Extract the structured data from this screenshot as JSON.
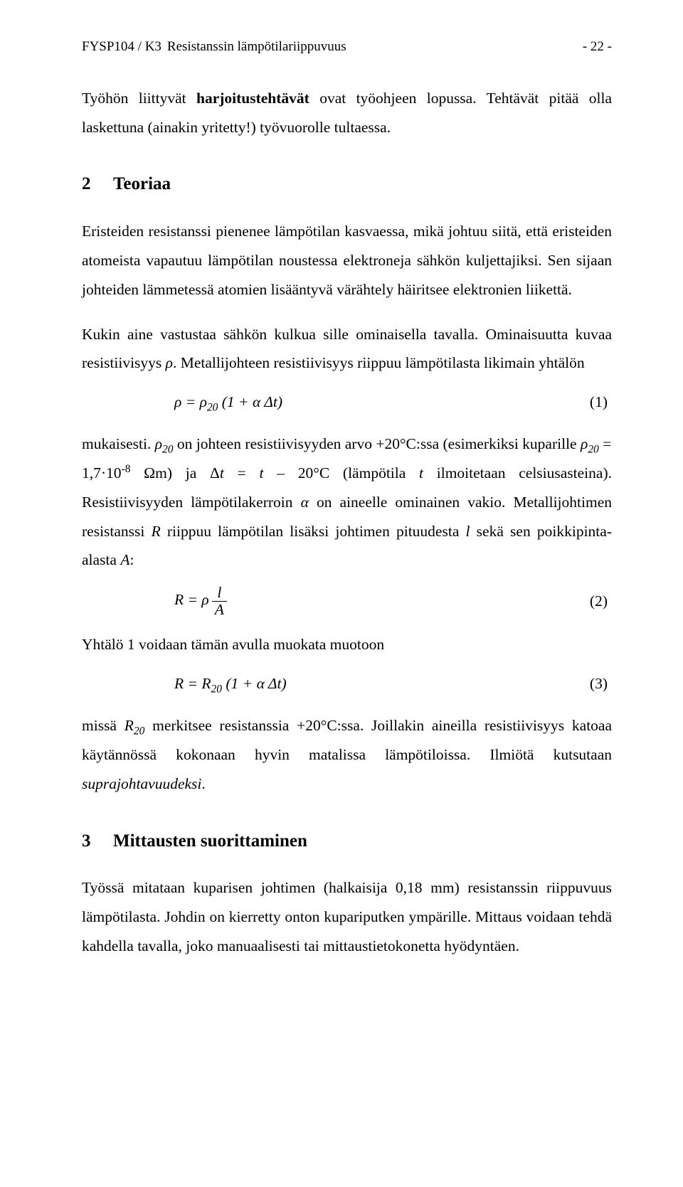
{
  "header": {
    "course": "FYSP104 / K3",
    "title": "Resistanssin lämpötilariippuvuus",
    "page": "- 22 -"
  },
  "intro": {
    "p1_a": "Työhön liittyvät ",
    "p1_b_bold": "harjoitustehtävät",
    "p1_c": " ovat työohjeen lopussa. Tehtävät pitää olla laskettuna (ainakin yritetty!) työvuorolle tultaessa."
  },
  "section2": {
    "num": "2",
    "title": "Teoriaa",
    "p1": "Eristeiden resistanssi pienenee lämpötilan kasvaessa, mikä johtuu siitä, että eristeiden atomeista vapautuu lämpötilan noustessa elektroneja sähkön kuljettajiksi. Sen sijaan johteiden lämmetessä atomien lisääntyvä värähtely häiritsee elektronien liikettä.",
    "p2_a": "Kukin aine vastustaa sähkön kulkua sille ominaisella tavalla. Ominaisuutta kuvaa resistiivisyys ",
    "p2_rho": "ρ",
    "p2_b": ". Metallijohteen resistiivisyys riippuu lämpötilasta likimain yhtälön",
    "eq1": "ρ = ρ₂₀ (1 + α Δt)",
    "eq1_num": "(1)",
    "p3_a": "mukaisesti. ",
    "p3_rho20": "ρ₂₀",
    "p3_b": " on johteen resistiivisyyden arvo +20°C:ssa (esimerkiksi kuparille ",
    "p3_rho20b": "ρ₂₀",
    "p3_c": " = 1,7·10",
    "p3_exp": "-8",
    "p3_d": " Ωm) ja Δ",
    "p3_e_it": "t",
    "p3_f": " = ",
    "p3_g_it": "t",
    "p3_h": " – 20°C (lämpötila ",
    "p3_i_it": "t",
    "p3_j": " ilmoitetaan celsiusasteina). Resistiivisyyden lämpötilakerroin ",
    "p3_alpha": "α",
    "p3_k": " on aineelle ominainen vakio. Metallijohtimen resistanssi ",
    "p3_R": "R",
    "p3_l": " riippuu lämpötilan lisäksi johtimen pituudesta ",
    "p3_litalic": "l",
    "p3_m": " sekä sen poikkipinta-alasta ",
    "p3_A": "A",
    "p3_n": ":",
    "eq2_lhs": "R = ρ",
    "eq2_top": "l",
    "eq2_bot": "A",
    "eq2_num": "(2)",
    "p4": "Yhtälö 1 voidaan tämän avulla muokata muotoon",
    "eq3": "R = R₂₀ (1 + α Δt)",
    "eq3_num": "(3)",
    "p5_a": "missä ",
    "p5_R20": "R₂₀",
    "p5_b": " merkitsee resistanssia +20°C:ssa. Joillakin aineilla resistiivisyys katoaa käytännössä kokonaan hyvin matalissa lämpötiloissa. Ilmiötä kutsutaan ",
    "p5_c_it": "suprajohtavuudeksi",
    "p5_d": "."
  },
  "section3": {
    "num": "3",
    "title": "Mittausten suorittaminen",
    "p1": "Työssä mitataan kuparisen johtimen (halkaisija 0,18 mm) resistanssin riippuvuus lämpötilasta. Johdin on kierretty onton kupariputken ympärille. Mittaus voidaan tehdä kahdella tavalla, joko manuaalisesti tai mittaustietokonetta hyödyntäen."
  }
}
